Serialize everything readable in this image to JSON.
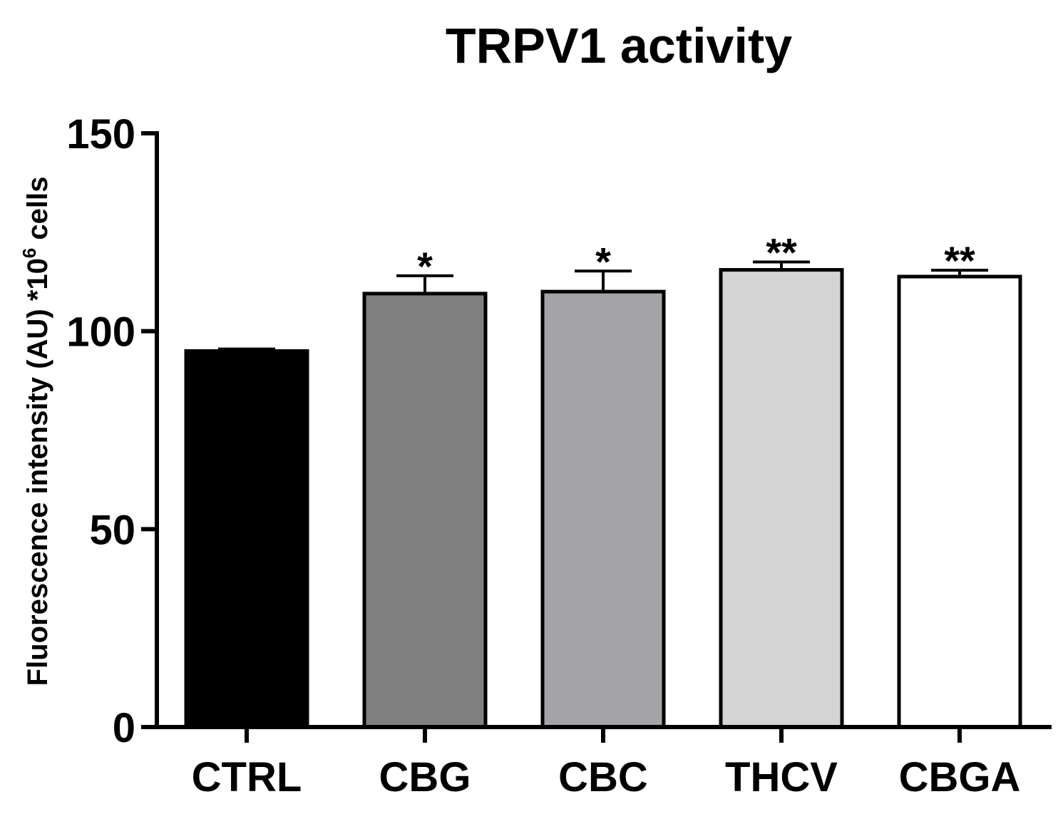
{
  "chart_data": {
    "type": "bar",
    "title": "TRPV1 activity",
    "ylabel_main": "Fluorescence intensity (AU) *10",
    "ylabel_sup": "6",
    "ylabel_tail": " cells",
    "xlabel": "",
    "ylim": [
      0,
      150
    ],
    "yticks": [
      0,
      50,
      100,
      150
    ],
    "categories": [
      "CTRL",
      "CBG",
      "CBC",
      "THCV",
      "CBGA"
    ],
    "values": [
      95,
      109.5,
      110,
      115.5,
      113.8
    ],
    "errors": [
      0.5,
      4.5,
      5.2,
      2.0,
      1.6
    ],
    "significance": [
      "",
      "*",
      "*",
      "**",
      "**"
    ],
    "fills": [
      "#000000",
      "#808080",
      "#a3a3a8",
      "#d4d4d4",
      "#ffffff"
    ],
    "grid": false,
    "legend": "none"
  }
}
